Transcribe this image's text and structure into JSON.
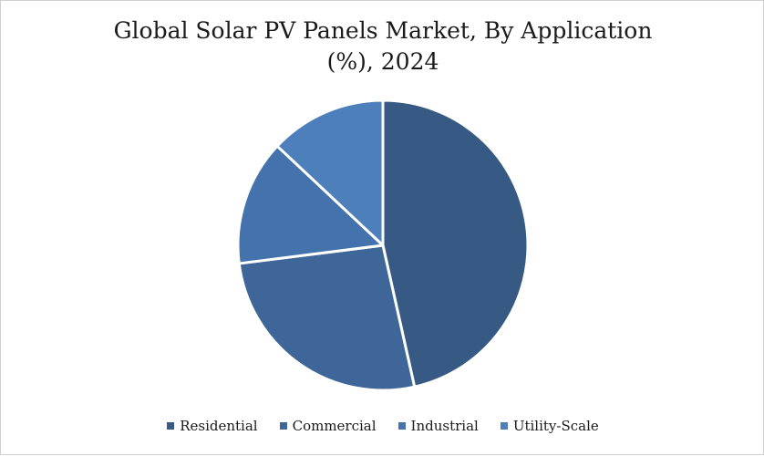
{
  "chart_data": {
    "type": "pie",
    "title_line1": "Global Solar PV Panels Market, By Application",
    "title_line2": "(%), 2024",
    "categories": [
      "Residential",
      "Commercial",
      "Industrial",
      "Utility-Scale"
    ],
    "values": [
      46.5,
      26.5,
      14,
      13
    ],
    "colors": [
      "#375a84",
      "#3f6699",
      "#4472ac",
      "#4d80ba"
    ],
    "legend_position": "bottom"
  }
}
